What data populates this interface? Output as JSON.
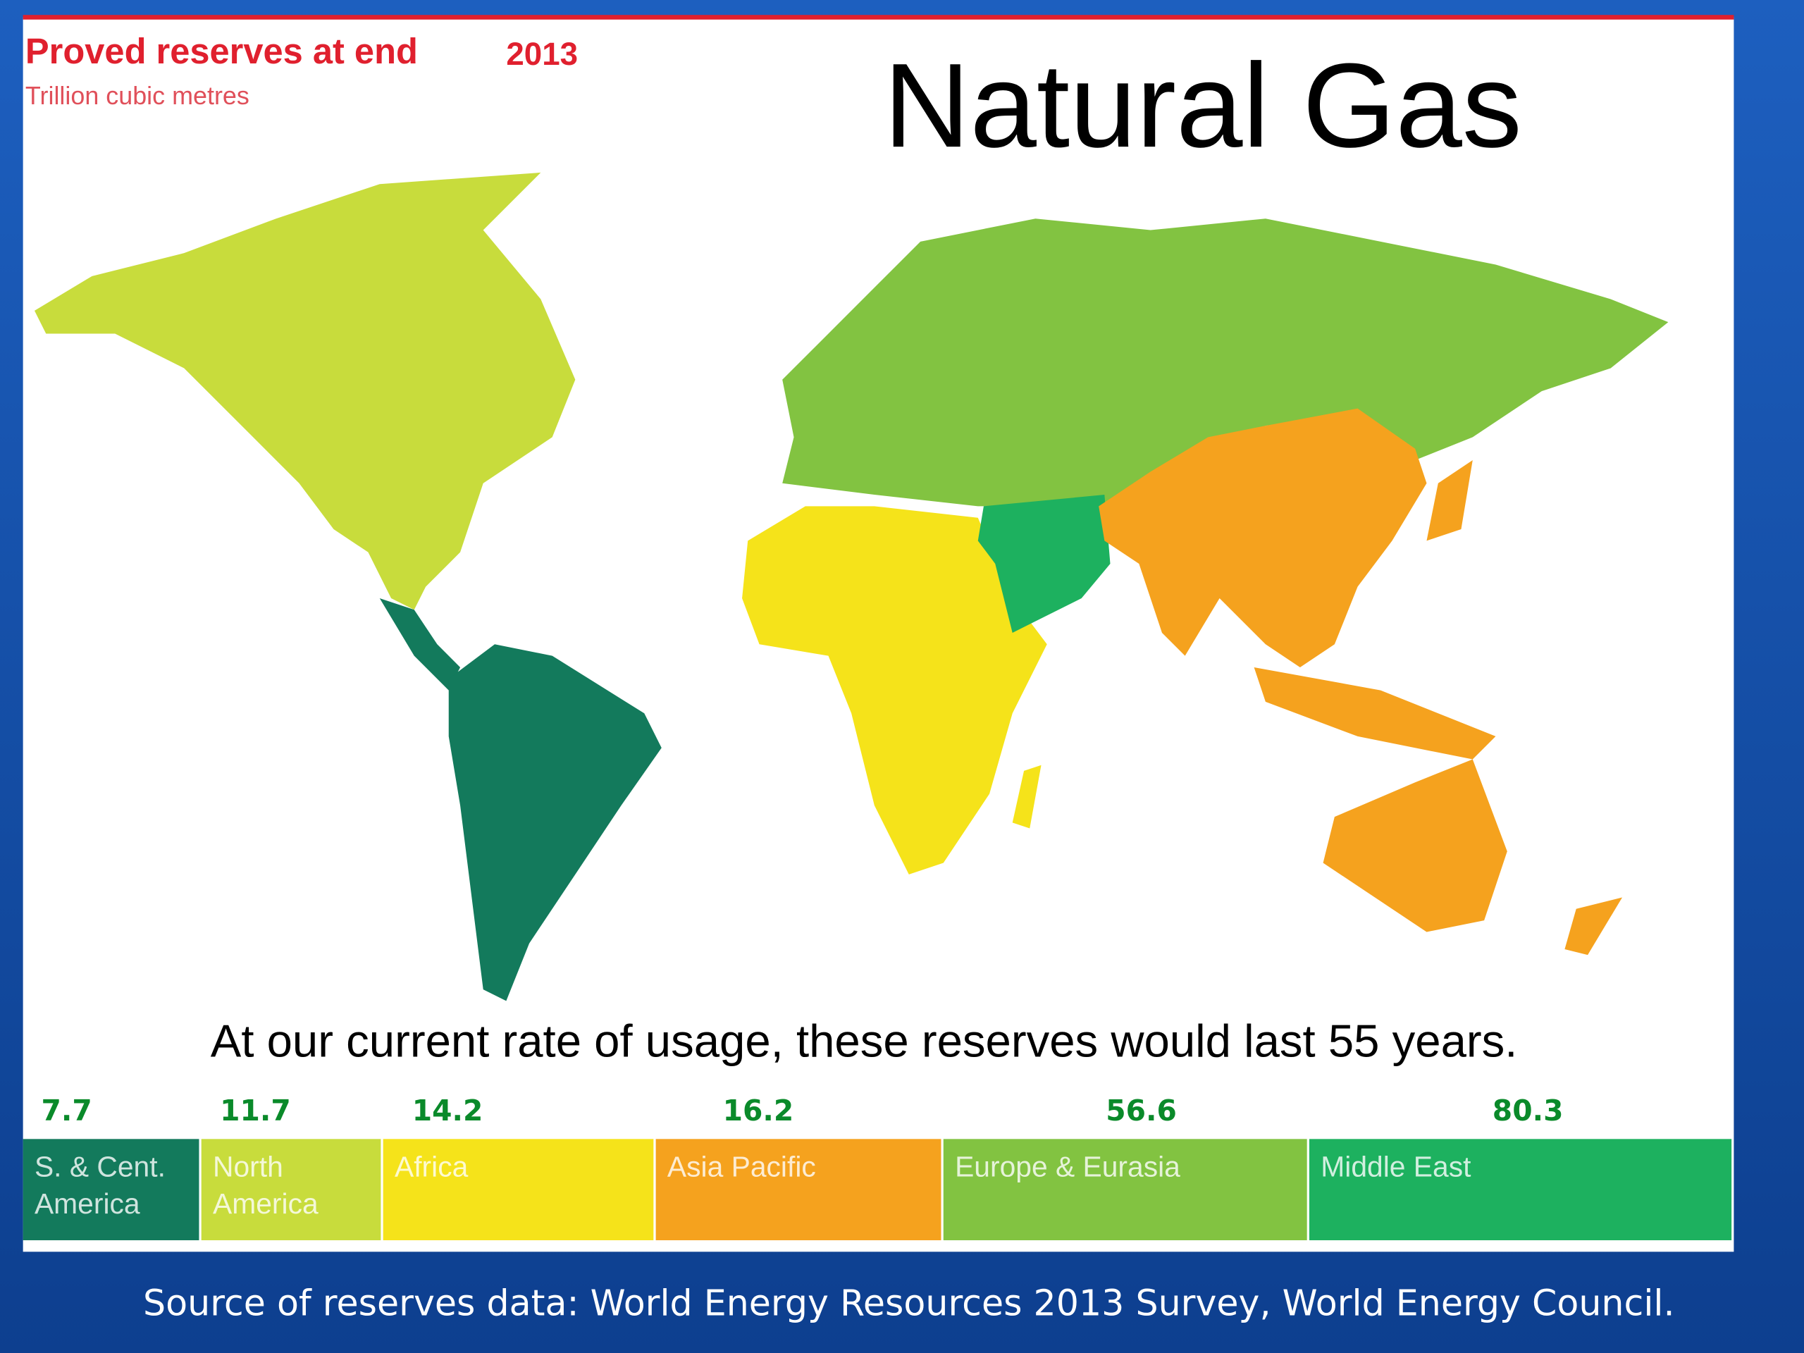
{
  "header": {
    "title": "Proved reserves at end",
    "year": "2013",
    "unit": "Trillion cubic metres"
  },
  "slide_title": "Natural Gas",
  "note": "At our current rate of usage, these reserves would last 55 years.",
  "regions": [
    {
      "name": [
        "S. & Cent.",
        "America"
      ],
      "value": 7.7,
      "color": "#137a5c"
    },
    {
      "name": [
        "North",
        "America"
      ],
      "value": 11.7,
      "color": "#c8dc3c"
    },
    {
      "name": [
        "Africa"
      ],
      "value": 14.2,
      "color": "#f5e31a"
    },
    {
      "name": [
        "Asia Pacific"
      ],
      "value": 16.2,
      "color": "#f5a21e"
    },
    {
      "name": [
        "Europe & Eurasia"
      ],
      "value": 56.6,
      "color": "#82c341"
    },
    {
      "name": [
        "Middle East"
      ],
      "value": 80.3,
      "color": "#1db15f"
    }
  ],
  "source": "Source of reserves data: World Energy Resources 2013 Survey, World Energy Council."
}
